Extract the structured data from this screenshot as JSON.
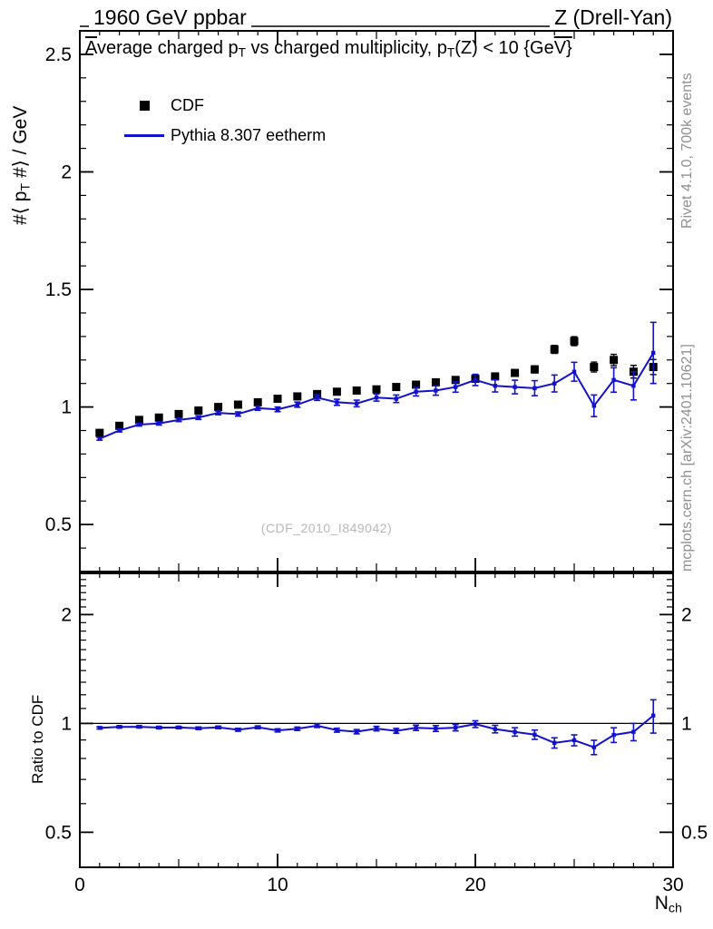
{
  "page": {
    "header_left": "1960 GeV ppbar",
    "header_right": "Z (Drell-Yan)",
    "watermark": "(CDF_2010_I849042)",
    "rivet_note": "Rivet 4.1.0,  700k events",
    "mcplots_note": "mcplots.cern.ch [arXiv:2401.10621]"
  },
  "title_segments": [
    {
      "t": "A",
      "ol": true
    },
    {
      "t": "verage charged p"
    },
    {
      "t": "T",
      "sub": true
    },
    {
      "t": " vs charged multiplicity, p"
    },
    {
      "t": "T",
      "sub": true
    },
    {
      "t": "(Z) < 10 {Ge"
    },
    {
      "t": "V}",
      "ol": true
    }
  ],
  "axis_labels": {
    "y_main_segments": [
      {
        "t": "#⟨ p"
      },
      {
        "t": "T",
        "sub": true
      },
      {
        "t": " #⟩ / GeV"
      }
    ],
    "y_ratio": "Ratio to CDF",
    "x_segments": [
      {
        "t": "N"
      },
      {
        "t": "ch",
        "sub": true
      }
    ]
  },
  "legend": {
    "entries": [
      {
        "label": "CDF",
        "style": "marker",
        "color": "#000000"
      },
      {
        "label": "Pythia 8.307 eetherm",
        "style": "line",
        "color": "#1212cc"
      }
    ]
  },
  "colors": {
    "frame": "#000000",
    "mc_blue": "#1212cc",
    "data_black": "#000000",
    "side_note_gray": "#909090",
    "watermark_gray": "#b8b8b8"
  },
  "chart_data": {
    "type": "line",
    "title": "Average charged p_T vs charged multiplicity, p_T(Z) < 10 {GeV}",
    "subtitle": "(CDF_2010_I849042)",
    "xlabel": "N_ch",
    "ylabel": "#< p_T #> / GeV",
    "ratio_label": "Ratio to CDF",
    "legend_position": "top-left-inside",
    "grid": false,
    "x": [
      1,
      2,
      3,
      4,
      5,
      6,
      7,
      8,
      9,
      10,
      11,
      12,
      13,
      14,
      15,
      16,
      17,
      18,
      19,
      20,
      21,
      22,
      23,
      24,
      25,
      26,
      27,
      28,
      29
    ],
    "series": [
      {
        "name": "CDF",
        "marker": "filled-square",
        "color": "#000000",
        "values": [
          0.89,
          0.92,
          0.945,
          0.955,
          0.97,
          0.985,
          1.0,
          1.01,
          1.02,
          1.035,
          1.045,
          1.055,
          1.065,
          1.07,
          1.075,
          1.085,
          1.095,
          1.105,
          1.115,
          1.12,
          1.13,
          1.145,
          1.16,
          1.245,
          1.28,
          1.17,
          1.2,
          1.15,
          1.17
        ],
        "errors": [
          0.01,
          0.008,
          0.007,
          0.006,
          0.006,
          0.006,
          0.006,
          0.006,
          0.006,
          0.006,
          0.006,
          0.006,
          0.007,
          0.007,
          0.007,
          0.008,
          0.008,
          0.009,
          0.01,
          0.011,
          0.012,
          0.013,
          0.015,
          0.017,
          0.019,
          0.021,
          0.024,
          0.027,
          0.032
        ]
      },
      {
        "name": "Pythia 8.307 eetherm",
        "marker": "line-with-errorbars",
        "color": "#1212cc",
        "values": [
          0.865,
          0.9,
          0.925,
          0.93,
          0.945,
          0.955,
          0.975,
          0.97,
          0.995,
          0.99,
          1.01,
          1.04,
          1.02,
          1.015,
          1.04,
          1.035,
          1.065,
          1.07,
          1.085,
          1.115,
          1.09,
          1.085,
          1.08,
          1.1,
          1.15,
          1.005,
          1.115,
          1.09,
          1.23
        ],
        "errors": [
          0.006,
          0.006,
          0.006,
          0.007,
          0.007,
          0.008,
          0.008,
          0.009,
          0.009,
          0.01,
          0.011,
          0.012,
          0.013,
          0.014,
          0.015,
          0.016,
          0.018,
          0.02,
          0.022,
          0.024,
          0.026,
          0.029,
          0.032,
          0.036,
          0.04,
          0.046,
          0.052,
          0.06,
          0.13
        ]
      }
    ],
    "ratio": {
      "definition": "Pythia / CDF",
      "reference": "CDF"
    },
    "main_axis": {
      "xlim": [
        0,
        30
      ],
      "ylim": [
        0.3,
        2.6
      ],
      "scale": "linear",
      "yticks": [
        0.5,
        1,
        1.5,
        2,
        2.5
      ],
      "ytick_labels": [
        "0.5",
        "1",
        "1.5",
        "2",
        "2.5"
      ],
      "y_minor_step": 0.1,
      "xticks": [
        0,
        10,
        20,
        30
      ],
      "xtick_labels": [
        "0",
        "10",
        "20",
        "30"
      ],
      "x_minor_step": 1
    },
    "ratio_axis": {
      "ylim": [
        0.4,
        2.6
      ],
      "scale": "log",
      "yticks": [
        0.5,
        1,
        2
      ],
      "ytick_labels": [
        "0.5",
        "1",
        "2"
      ]
    }
  }
}
